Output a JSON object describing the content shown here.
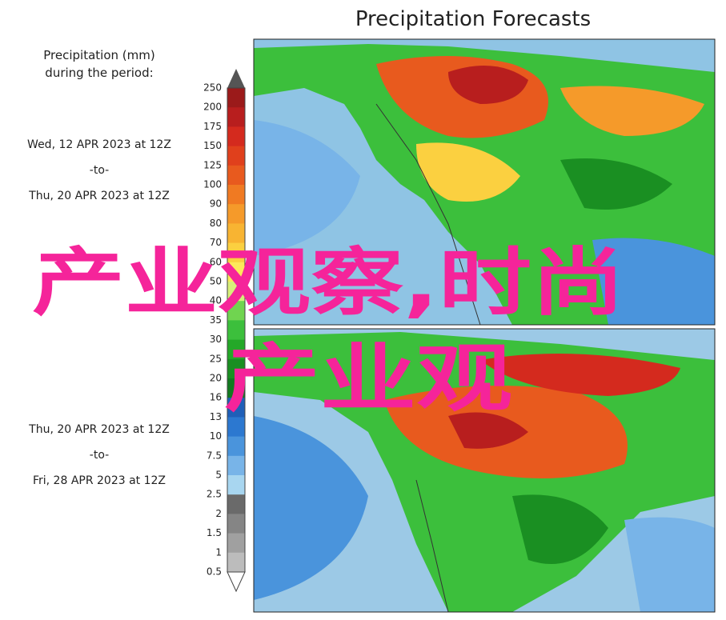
{
  "title": "Precipitation Forecasts",
  "legend": {
    "title_lines": [
      "Precipitation (mm)",
      "during the period:"
    ],
    "ticks": [
      "250",
      "200",
      "175",
      "150",
      "125",
      "100",
      "90",
      "80",
      "70",
      "60",
      "50",
      "40",
      "35",
      "30",
      "25",
      "20",
      "16",
      "13",
      "10",
      "7.5",
      "5",
      "2.5",
      "2",
      "1.5",
      "1",
      "0.5"
    ],
    "colors": [
      "#9b1a1a",
      "#b81e1e",
      "#d42a1e",
      "#e0401c",
      "#e85a1e",
      "#f07a22",
      "#f59a2a",
      "#f8b432",
      "#fbd040",
      "#fde85a",
      "#d8ef7a",
      "#70d450",
      "#3cbf3c",
      "#24a828",
      "#1a8f22",
      "#127a20",
      "#1f5fb8",
      "#2c78d0",
      "#4a94dc",
      "#78b4e8",
      "#a8d6f0",
      "#6a6a6a",
      "#858585",
      "#a0a0a0",
      "#bcbcbc"
    ]
  },
  "periods": [
    [
      "Wed, 12 APR 2023 at 12Z",
      "-to-",
      "Thu, 20 APR 2023 at 12Z"
    ],
    [
      "Thu, 20 APR 2023 at 12Z",
      "-to-",
      "Fri, 28 APR 2023 at 12Z"
    ]
  ],
  "overlay": [
    "产业观察,时尚",
    "产业观"
  ]
}
